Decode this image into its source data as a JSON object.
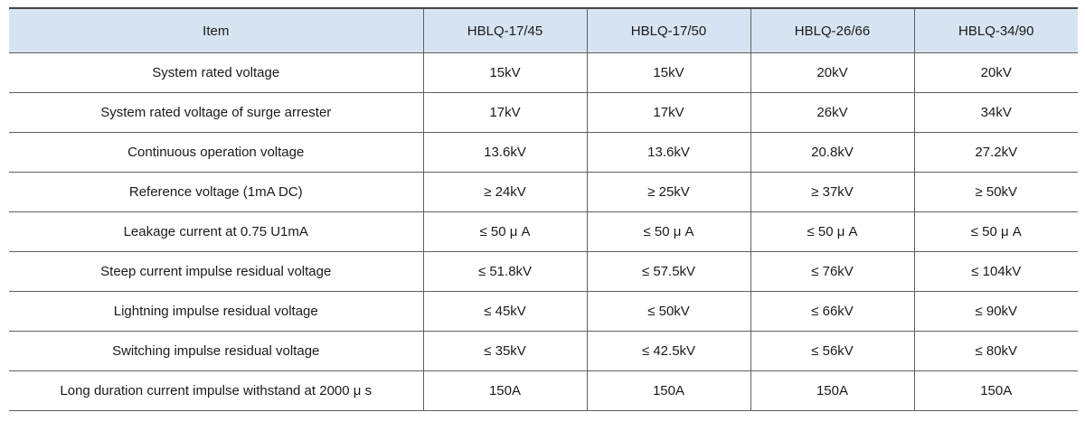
{
  "colors": {
    "header_background": "#d6e4f2",
    "border": "#5f5f60",
    "text": "#1a1a1a",
    "page_background": "#ffffff"
  },
  "table": {
    "columns": [
      "Item",
      "HBLQ-17/45",
      "HBLQ-17/50",
      "HBLQ-26/66",
      "HBLQ-34/90"
    ],
    "rows": [
      {
        "item": "System rated voltage",
        "values": [
          "15kV",
          "15kV",
          "20kV",
          "20kV"
        ]
      },
      {
        "item": "System rated voltage of surge arrester",
        "values": [
          "17kV",
          "17kV",
          "26kV",
          "34kV"
        ]
      },
      {
        "item": "Continuous operation voltage",
        "values": [
          "13.6kV",
          "13.6kV",
          "20.8kV",
          "27.2kV"
        ]
      },
      {
        "item": "Reference voltage (1mA DC)",
        "values": [
          "≥ 24kV",
          "≥ 25kV",
          "≥ 37kV",
          "≥ 50kV"
        ]
      },
      {
        "item": "Leakage current at 0.75 U1mA",
        "values": [
          "≤ 50 μ A",
          "≤ 50 μ A",
          "≤ 50 μ A",
          "≤ 50 μ A"
        ]
      },
      {
        "item": "Steep current impulse residual voltage",
        "values": [
          "≤ 51.8kV",
          "≤ 57.5kV",
          "≤ 76kV",
          "≤ 104kV"
        ]
      },
      {
        "item": "Lightning impulse residual voltage",
        "values": [
          "≤ 45kV",
          "≤ 50kV",
          "≤ 66kV",
          "≤ 90kV"
        ]
      },
      {
        "item": "Switching impulse residual voltage",
        "values": [
          "≤ 35kV",
          "≤ 42.5kV",
          "≤ 56kV",
          "≤ 80kV"
        ]
      },
      {
        "item": "Long duration current impulse withstand at 2000 μ s",
        "values": [
          "150A",
          "150A",
          "150A",
          "150A"
        ]
      }
    ]
  }
}
